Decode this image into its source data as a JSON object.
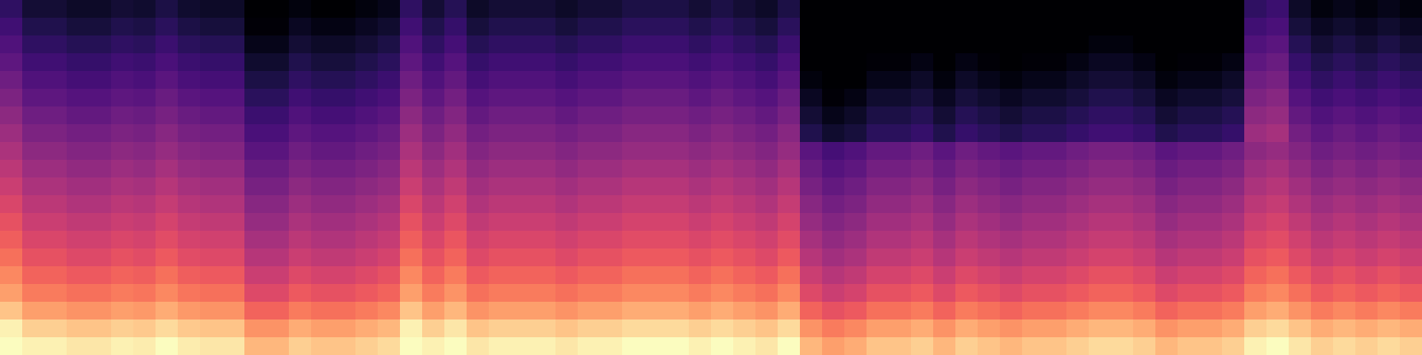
{
  "chart_data": {
    "type": "heatmap",
    "color": "magma",
    "color_range": [
      -80,
      0
    ],
    "tick_labels": false,
    "cells": [
      [
        -66,
        -72,
        -72,
        -74,
        -74,
        -72,
        -73,
        -70,
        -73,
        -74,
        -74,
        -80,
        -80,
        -78,
        -80,
        -80,
        -78,
        -76,
        -66,
        -72,
        -68,
        -74,
        -72,
        -72,
        -72,
        -74,
        -72,
        -72,
        -70,
        -70,
        -70,
        -72,
        -70,
        -72,
        -74,
        -70,
        -80,
        -80,
        -80,
        -80,
        -80,
        -80,
        -80,
        -80,
        -80,
        -80,
        -80,
        -80,
        -80,
        -80,
        -80,
        -80,
        -80,
        -80,
        -80,
        -80,
        -66,
        -64,
        -74,
        -78,
        -76,
        -78,
        -76,
        -78
      ],
      [
        -63,
        -69,
        -69,
        -71,
        -71,
        -69,
        -70,
        -67,
        -70,
        -71,
        -71,
        -79,
        -79,
        -75,
        -77,
        -77,
        -75,
        -73,
        -63,
        -69,
        -65,
        -71,
        -69,
        -69,
        -69,
        -71,
        -69,
        -69,
        -67,
        -67,
        -67,
        -69,
        -67,
        -69,
        -71,
        -67,
        -80,
        -80,
        -80,
        -80,
        -80,
        -80,
        -80,
        -80,
        -80,
        -80,
        -80,
        -80,
        -80,
        -80,
        -80,
        -80,
        -80,
        -80,
        -80,
        -80,
        -63,
        -61,
        -71,
        -75,
        -73,
        -75,
        -73,
        -75
      ],
      [
        -60,
        -66,
        -66,
        -68,
        -68,
        -66,
        -67,
        -64,
        -67,
        -68,
        -68,
        -76,
        -76,
        -72,
        -74,
        -74,
        -72,
        -70,
        -60,
        -66,
        -62,
        -68,
        -66,
        -66,
        -66,
        -68,
        -66,
        -66,
        -64,
        -64,
        -64,
        -66,
        -64,
        -66,
        -68,
        -64,
        -80,
        -80,
        -80,
        -80,
        -80,
        -80,
        -80,
        -80,
        -80,
        -80,
        -80,
        -80,
        -80,
        -78,
        -78,
        -80,
        -80,
        -80,
        -80,
        -80,
        -60,
        -58,
        -68,
        -72,
        -70,
        -72,
        -70,
        -72
      ],
      [
        -57,
        -63,
        -63,
        -65,
        -65,
        -63,
        -64,
        -61,
        -64,
        -65,
        -65,
        -73,
        -73,
        -69,
        -71,
        -71,
        -69,
        -67,
        -57,
        -63,
        -59,
        -65,
        -63,
        -63,
        -63,
        -65,
        -63,
        -63,
        -61,
        -61,
        -61,
        -63,
        -61,
        -63,
        -65,
        -61,
        -80,
        -80,
        -80,
        -79,
        -79,
        -77,
        -80,
        -77,
        -79,
        -80,
        -79,
        -79,
        -77,
        -75,
        -75,
        -77,
        -80,
        -79,
        -79,
        -77,
        -57,
        -55,
        -65,
        -69,
        -67,
        -69,
        -67,
        -69
      ],
      [
        -54,
        -60,
        -60,
        -62,
        -62,
        -60,
        -61,
        -58,
        -61,
        -62,
        -62,
        -70,
        -70,
        -66,
        -68,
        -68,
        -66,
        -64,
        -54,
        -60,
        -56,
        -62,
        -60,
        -60,
        -60,
        -62,
        -60,
        -60,
        -58,
        -58,
        -58,
        -60,
        -58,
        -60,
        -62,
        -58,
        -78,
        -80,
        -80,
        -76,
        -76,
        -74,
        -78,
        -74,
        -76,
        -78,
        -76,
        -76,
        -74,
        -72,
        -72,
        -74,
        -78,
        -76,
        -76,
        -74,
        -54,
        -52,
        -62,
        -66,
        -64,
        -66,
        -64,
        -66
      ],
      [
        -51,
        -57,
        -57,
        -59,
        -59,
        -57,
        -58,
        -55,
        -58,
        -59,
        -59,
        -67,
        -67,
        -63,
        -65,
        -65,
        -63,
        -61,
        -51,
        -57,
        -53,
        -59,
        -57,
        -57,
        -57,
        -59,
        -57,
        -57,
        -55,
        -55,
        -55,
        -57,
        -55,
        -57,
        -59,
        -55,
        -75,
        -79,
        -77,
        -73,
        -73,
        -71,
        -75,
        -71,
        -73,
        -75,
        -73,
        -73,
        -71,
        -69,
        -69,
        -71,
        -75,
        -73,
        -73,
        -71,
        -51,
        -49,
        -59,
        -63,
        -61,
        -63,
        -61,
        -63
      ],
      [
        -48,
        -54,
        -54,
        -56,
        -56,
        -54,
        -55,
        -52,
        -55,
        -56,
        -56,
        -64,
        -64,
        -60,
        -62,
        -62,
        -60,
        -58,
        -48,
        -54,
        -50,
        -56,
        -54,
        -54,
        -54,
        -56,
        -54,
        -54,
        -52,
        -52,
        -52,
        -54,
        -52,
        -54,
        -56,
        -52,
        -72,
        -76,
        -74,
        -70,
        -70,
        -68,
        -72,
        -68,
        -70,
        -72,
        -70,
        -70,
        -68,
        -66,
        -66,
        -68,
        -72,
        -70,
        -70,
        -68,
        -48,
        -46,
        -56,
        -60,
        -58,
        -60,
        -58,
        -60
      ],
      [
        -45,
        -51,
        -51,
        -53,
        -53,
        -51,
        -52,
        -49,
        -52,
        -53,
        -53,
        -61,
        -61,
        -57,
        -59,
        -59,
        -57,
        -55,
        -45,
        -51,
        -47,
        -53,
        -51,
        -51,
        -51,
        -53,
        -51,
        -51,
        -49,
        -49,
        -49,
        -51,
        -49,
        -51,
        -53,
        -49,
        -69,
        -73,
        -71,
        -67,
        -67,
        -65,
        -69,
        -65,
        -67,
        -69,
        -67,
        -67,
        -65,
        -63,
        -63,
        -65,
        -69,
        -67,
        -67,
        -65,
        -45,
        -43,
        -53,
        -57,
        -55,
        -57,
        -55,
        -57
      ],
      [
        -42,
        -48,
        -48,
        -50,
        -50,
        -48,
        -49,
        -46,
        -49,
        -50,
        -50,
        -58,
        -58,
        -54,
        -56,
        -56,
        -54,
        -52,
        -42,
        -48,
        -44,
        -50,
        -48,
        -48,
        -48,
        -50,
        -48,
        -48,
        -46,
        -46,
        -46,
        -48,
        -46,
        -48,
        -50,
        -46,
        -58,
        -62,
        -60,
        -56,
        -56,
        -54,
        -58,
        -54,
        -56,
        -58,
        -56,
        -56,
        -54,
        -52,
        -52,
        -54,
        -58,
        -56,
        -56,
        -54,
        -48,
        -46,
        -50,
        -54,
        -52,
        -54,
        -52,
        -54
      ],
      [
        -39,
        -45,
        -45,
        -47,
        -47,
        -45,
        -46,
        -43,
        -46,
        -47,
        -47,
        -55,
        -55,
        -51,
        -53,
        -53,
        -51,
        -49,
        -39,
        -45,
        -41,
        -47,
        -45,
        -45,
        -45,
        -47,
        -45,
        -45,
        -43,
        -43,
        -43,
        -45,
        -43,
        -45,
        -47,
        -43,
        -55,
        -59,
        -57,
        -53,
        -53,
        -51,
        -55,
        -51,
        -53,
        -55,
        -53,
        -53,
        -51,
        -49,
        -49,
        -51,
        -55,
        -53,
        -53,
        -51,
        -45,
        -43,
        -47,
        -51,
        -49,
        -51,
        -49,
        -51
      ],
      [
        -36,
        -42,
        -42,
        -44,
        -44,
        -42,
        -43,
        -40,
        -43,
        -44,
        -44,
        -52,
        -52,
        -48,
        -50,
        -50,
        -48,
        -46,
        -36,
        -42,
        -38,
        -44,
        -42,
        -42,
        -42,
        -44,
        -42,
        -42,
        -40,
        -40,
        -40,
        -42,
        -40,
        -42,
        -44,
        -40,
        -52,
        -56,
        -54,
        -50,
        -50,
        -48,
        -52,
        -48,
        -50,
        -52,
        -50,
        -50,
        -48,
        -46,
        -46,
        -48,
        -52,
        -50,
        -50,
        -48,
        -42,
        -40,
        -44,
        -48,
        -46,
        -48,
        -46,
        -48
      ],
      [
        -33,
        -39,
        -39,
        -41,
        -41,
        -39,
        -40,
        -37,
        -40,
        -41,
        -41,
        -49,
        -49,
        -45,
        -47,
        -47,
        -45,
        -43,
        -33,
        -39,
        -35,
        -41,
        -39,
        -39,
        -39,
        -41,
        -39,
        -39,
        -37,
        -37,
        -37,
        -39,
        -37,
        -39,
        -41,
        -37,
        -49,
        -53,
        -51,
        -47,
        -47,
        -45,
        -49,
        -45,
        -47,
        -49,
        -47,
        -47,
        -45,
        -43,
        -43,
        -45,
        -49,
        -47,
        -47,
        -45,
        -39,
        -37,
        -41,
        -45,
        -43,
        -45,
        -43,
        -45
      ],
      [
        -30,
        -36,
        -36,
        -38,
        -38,
        -36,
        -37,
        -34,
        -37,
        -38,
        -38,
        -46,
        -46,
        -42,
        -44,
        -44,
        -42,
        -40,
        -30,
        -36,
        -32,
        -38,
        -36,
        -36,
        -36,
        -38,
        -36,
        -36,
        -34,
        -34,
        -34,
        -36,
        -34,
        -36,
        -38,
        -34,
        -46,
        -50,
        -48,
        -44,
        -44,
        -42,
        -46,
        -42,
        -44,
        -46,
        -44,
        -44,
        -42,
        -40,
        -40,
        -42,
        -46,
        -44,
        -44,
        -42,
        -36,
        -34,
        -38,
        -42,
        -40,
        -42,
        -40,
        -42
      ],
      [
        -27,
        -33,
        -33,
        -35,
        -35,
        -33,
        -34,
        -31,
        -34,
        -35,
        -35,
        -43,
        -43,
        -39,
        -41,
        -41,
        -39,
        -37,
        -27,
        -33,
        -29,
        -35,
        -33,
        -33,
        -33,
        -35,
        -33,
        -33,
        -31,
        -31,
        -31,
        -33,
        -31,
        -33,
        -35,
        -31,
        -43,
        -47,
        -45,
        -41,
        -41,
        -39,
        -43,
        -39,
        -41,
        -43,
        -41,
        -41,
        -39,
        -37,
        -37,
        -39,
        -43,
        -41,
        -41,
        -39,
        -33,
        -31,
        -35,
        -39,
        -37,
        -39,
        -37,
        -39
      ],
      [
        -24,
        -30,
        -30,
        -32,
        -32,
        -30,
        -31,
        -28,
        -31,
        -32,
        -32,
        -40,
        -40,
        -36,
        -38,
        -38,
        -36,
        -34,
        -24,
        -30,
        -26,
        -32,
        -30,
        -30,
        -30,
        -32,
        -30,
        -30,
        -28,
        -28,
        -28,
        -30,
        -28,
        -30,
        -32,
        -28,
        -40,
        -44,
        -42,
        -38,
        -38,
        -36,
        -40,
        -36,
        -38,
        -40,
        -38,
        -38,
        -36,
        -34,
        -34,
        -36,
        -40,
        -38,
        -38,
        -36,
        -30,
        -28,
        -32,
        -36,
        -34,
        -36,
        -34,
        -36
      ],
      [
        -20,
        -26,
        -26,
        -28,
        -28,
        -26,
        -27,
        -24,
        -27,
        -28,
        -28,
        -36,
        -36,
        -32,
        -34,
        -34,
        -32,
        -30,
        -20,
        -26,
        -22,
        -28,
        -26,
        -26,
        -26,
        -28,
        -26,
        -26,
        -24,
        -24,
        -24,
        -26,
        -24,
        -26,
        -28,
        -24,
        -36,
        -40,
        -38,
        -34,
        -34,
        -32,
        -36,
        -32,
        -34,
        -36,
        -34,
        -34,
        -32,
        -30,
        -30,
        -32,
        -36,
        -34,
        -34,
        -32,
        -26,
        -24,
        -28,
        -32,
        -30,
        -32,
        -30,
        -32
      ],
      [
        -16,
        -22,
        -22,
        -24,
        -24,
        -22,
        -23,
        -20,
        -23,
        -24,
        -24,
        -32,
        -32,
        -28,
        -30,
        -30,
        -28,
        -26,
        -16,
        -22,
        -18,
        -24,
        -22,
        -22,
        -22,
        -24,
        -22,
        -22,
        -20,
        -20,
        -20,
        -22,
        -20,
        -22,
        -24,
        -20,
        -32,
        -36,
        -34,
        -30,
        -30,
        -28,
        -32,
        -28,
        -30,
        -32,
        -30,
        -30,
        -28,
        -26,
        -26,
        -28,
        -32,
        -30,
        -30,
        -28,
        -22,
        -20,
        -24,
        -28,
        -26,
        -28,
        -26,
        -28
      ],
      [
        -10,
        -16,
        -16,
        -18,
        -18,
        -16,
        -17,
        -14,
        -17,
        -18,
        -18,
        -26,
        -26,
        -22,
        -24,
        -24,
        -22,
        -20,
        -10,
        -16,
        -12,
        -18,
        -16,
        -16,
        -16,
        -18,
        -16,
        -16,
        -14,
        -14,
        -14,
        -16,
        -14,
        -16,
        -18,
        -14,
        -26,
        -30,
        -28,
        -24,
        -24,
        -22,
        -26,
        -22,
        -24,
        -26,
        -24,
        -24,
        -22,
        -20,
        -20,
        -22,
        -26,
        -24,
        -24,
        -22,
        -16,
        -14,
        -18,
        -22,
        -20,
        -22,
        -20,
        -22
      ],
      [
        -2,
        -8,
        -8,
        -10,
        -10,
        -8,
        -9,
        -6,
        -9,
        -10,
        -10,
        -18,
        -18,
        -14,
        -16,
        -16,
        -14,
        -12,
        -2,
        -8,
        -4,
        -10,
        -8,
        -8,
        -8,
        -10,
        -8,
        -8,
        -6,
        -6,
        -6,
        -8,
        -6,
        -8,
        -10,
        -6,
        -18,
        -22,
        -20,
        -16,
        -16,
        -14,
        -18,
        -14,
        -16,
        -18,
        -16,
        -16,
        -14,
        -12,
        -12,
        -14,
        -18,
        -16,
        -16,
        -14,
        -8,
        -6,
        -10,
        -14,
        -12,
        -14,
        -12,
        -14
      ],
      [
        0,
        -2,
        -2,
        -4,
        -4,
        -2,
        -3,
        0,
        -3,
        -4,
        -4,
        -12,
        -12,
        -8,
        -10,
        -10,
        -8,
        -6,
        0,
        -2,
        0,
        -4,
        -2,
        -2,
        -2,
        -4,
        -2,
        -2,
        0,
        0,
        0,
        -2,
        0,
        -2,
        -4,
        0,
        -12,
        -16,
        -14,
        -10,
        -10,
        -8,
        -12,
        -8,
        -10,
        -12,
        -10,
        -10,
        -8,
        -6,
        -6,
        -8,
        -12,
        -10,
        -10,
        -8,
        -2,
        0,
        -4,
        -8,
        -6,
        -8,
        -6,
        -8
      ]
    ]
  }
}
